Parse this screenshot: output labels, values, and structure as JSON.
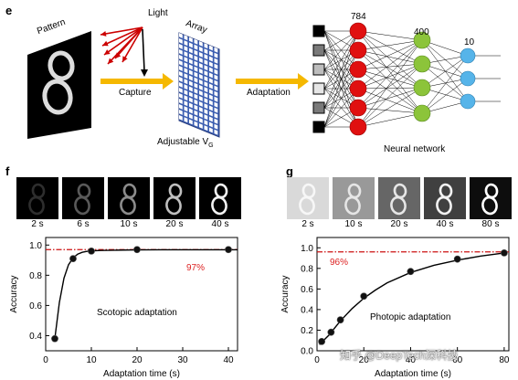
{
  "panel_e": {
    "letter": "e",
    "pattern_label": "Pattern",
    "light_label": "Light",
    "array_label": "Array",
    "capture_label": "Capture",
    "adjustable_label": "Adjustable V",
    "adjustable_sub": "G",
    "adaptation_label": "Adaptation",
    "layer_sizes": [
      "784",
      "400",
      "10"
    ],
    "network_label": "Neural network",
    "input_shades": [
      "#000000",
      "#7a7a7a",
      "#bdbdbd",
      "#e6e6e6",
      "#7a7a7a",
      "#000000"
    ],
    "colors": {
      "arrow": "#f5b800",
      "red_neuron": "#e01010",
      "green_neuron": "#8cc43a",
      "blue_neuron": "#56b4e9",
      "light_ray": "#cc0000"
    }
  },
  "panel_f": {
    "letter": "f",
    "thumb_labels": [
      "2 s",
      "6 s",
      "10 s",
      "20 s",
      "40 s"
    ],
    "thumb_brightness": [
      0.18,
      0.35,
      0.55,
      0.75,
      0.95
    ],
    "thumb_bg": [
      0.0,
      0.0,
      0.0,
      0.0,
      0.0
    ]
  },
  "panel_g": {
    "letter": "g",
    "thumb_labels": [
      "2 s",
      "10 s",
      "20 s",
      "40 s",
      "80 s"
    ],
    "thumb_brightness": [
      0.97,
      0.9,
      0.9,
      0.95,
      1.0
    ],
    "thumb_bg": [
      0.85,
      0.6,
      0.4,
      0.25,
      0.05
    ]
  },
  "chart_data": [
    {
      "type": "scatter",
      "name": "f",
      "title": "",
      "xlabel": "Adaptation time (s)",
      "ylabel": "Accuracy",
      "annotation": "Scotopic adaptation",
      "ref_label": "97%",
      "ref_value": 0.97,
      "xlim": [
        0,
        42
      ],
      "ylim": [
        0.3,
        1.05
      ],
      "xticks": [
        "0",
        "10",
        "20",
        "30",
        "40"
      ],
      "yticks": [
        "0.4",
        "0.6",
        "0.8",
        "1.0"
      ],
      "x": [
        2,
        6,
        10,
        20,
        40
      ],
      "y": [
        0.38,
        0.91,
        0.96,
        0.97,
        0.97
      ],
      "fit_x": [
        2,
        3,
        4,
        5,
        6,
        7,
        8,
        9,
        10,
        12,
        15,
        20,
        25,
        30,
        35,
        40,
        42
      ],
      "fit_y": [
        0.38,
        0.62,
        0.78,
        0.87,
        0.915,
        0.94,
        0.952,
        0.958,
        0.961,
        0.964,
        0.966,
        0.968,
        0.969,
        0.969,
        0.969,
        0.969,
        0.969
      ]
    },
    {
      "type": "scatter",
      "name": "g",
      "title": "",
      "xlabel": "Adaptation time (s)",
      "ylabel": "Accuracy",
      "annotation": "Photopic adaptation",
      "ref_label": "96%",
      "ref_value": 0.96,
      "xlim": [
        0,
        82
      ],
      "ylim": [
        0,
        1.1
      ],
      "xticks": [
        "0",
        "20",
        "40",
        "60",
        "80"
      ],
      "yticks": [
        "0.0",
        "0.2",
        "0.4",
        "0.6",
        "0.8",
        "1.0"
      ],
      "x": [
        2,
        6,
        10,
        20,
        40,
        60,
        80
      ],
      "y": [
        0.09,
        0.18,
        0.3,
        0.53,
        0.77,
        0.89,
        0.95
      ],
      "fit_x": [
        1,
        5,
        10,
        15,
        20,
        25,
        30,
        40,
        50,
        60,
        70,
        80
      ],
      "fit_y": [
        0.06,
        0.15,
        0.29,
        0.41,
        0.51,
        0.59,
        0.66,
        0.76,
        0.83,
        0.88,
        0.92,
        0.95
      ]
    }
  ],
  "watermark": "知乎 @DeepTech深科技"
}
